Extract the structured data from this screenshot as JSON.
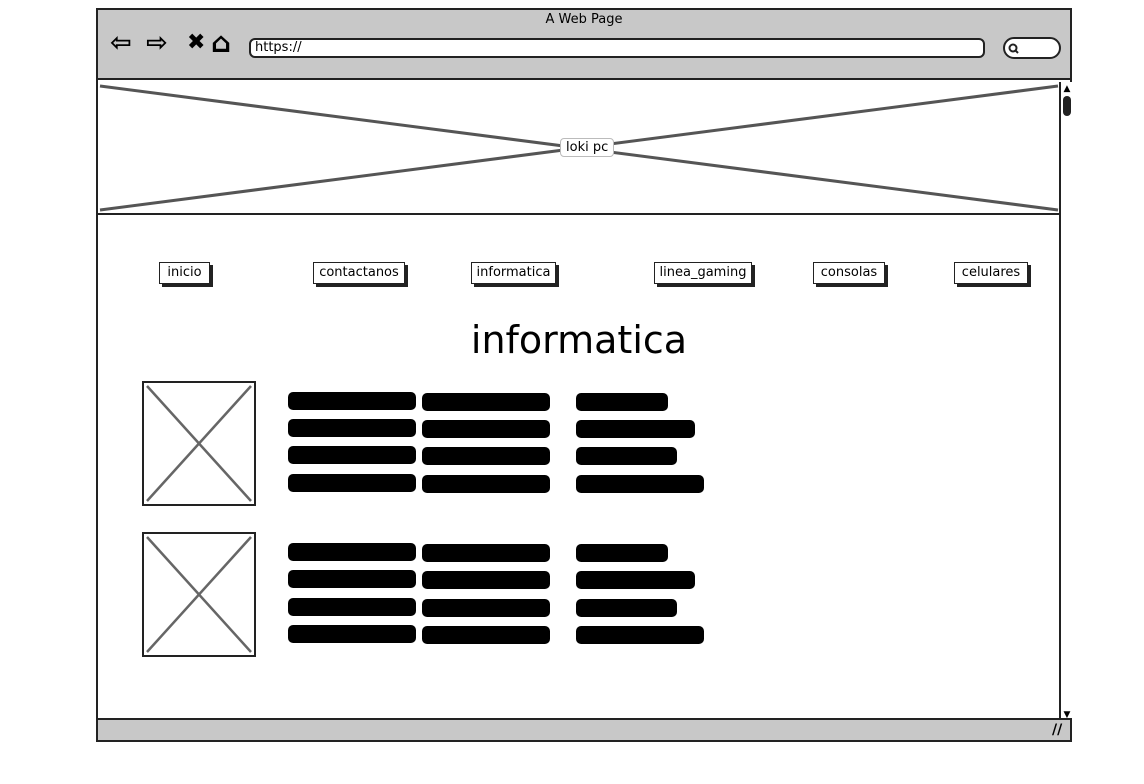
{
  "window": {
    "title": "A Web Page"
  },
  "navigation": {
    "back_glyph": "⇦",
    "forward_glyph": "⇨",
    "stop_glyph": "✖",
    "home_glyph": "⌂",
    "url": "https://"
  },
  "banner": {
    "label": "loki pc"
  },
  "menu": {
    "items": [
      {
        "label": "inicio"
      },
      {
        "label": "contactanos"
      },
      {
        "label": "informatica"
      },
      {
        "label": "linea_gaming"
      },
      {
        "label": "consolas"
      },
      {
        "label": "celulares"
      }
    ]
  },
  "page": {
    "heading": "informatica"
  },
  "products": [
    {
      "image": "image-placeholder",
      "text_lines": 4
    },
    {
      "image": "image-placeholder",
      "text_lines": 4
    }
  ],
  "icons": {
    "back": "arrow-left-icon",
    "forward": "arrow-right-icon",
    "stop": "close-icon",
    "home": "home-icon",
    "search": "search-icon",
    "resize": "resize-grip-icon"
  },
  "colors": {
    "chrome": "#c8c8c8",
    "ink": "#222222",
    "text_bar": "#000000"
  }
}
